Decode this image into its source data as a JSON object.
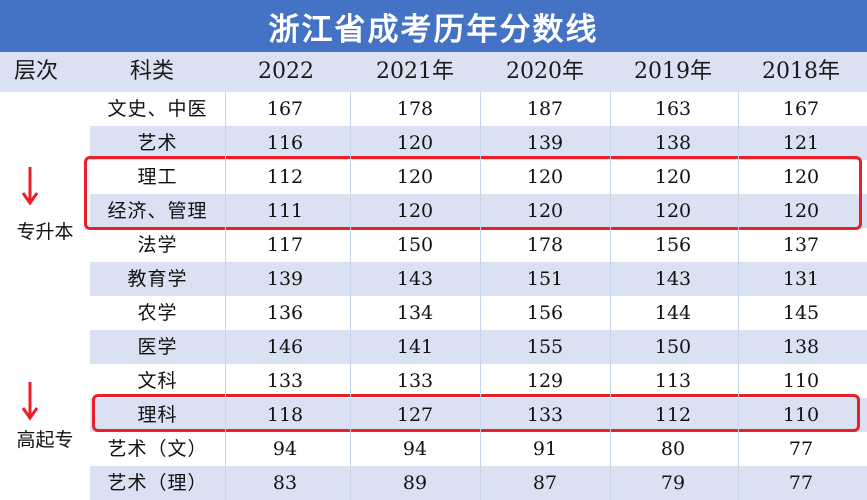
{
  "title": "浙江省成考历年分数线",
  "headers": [
    "层次",
    "科类",
    "2022",
    "2021年",
    "2020年",
    "2019年",
    "2018年"
  ],
  "groups": [
    {
      "level": "专升本"
    },
    {
      "level": "高起专"
    }
  ],
  "rows": [
    {
      "subject": "文史、中医",
      "scores": [
        "167",
        "178",
        "187",
        "163",
        "167"
      ]
    },
    {
      "subject": "艺术",
      "scores": [
        "116",
        "120",
        "139",
        "138",
        "121"
      ]
    },
    {
      "subject": "理工",
      "scores": [
        "112",
        "120",
        "120",
        "120",
        "120"
      ]
    },
    {
      "subject": "经济、管理",
      "scores": [
        "111",
        "120",
        "120",
        "120",
        "120"
      ]
    },
    {
      "subject": "法学",
      "scores": [
        "117",
        "150",
        "178",
        "156",
        "137"
      ]
    },
    {
      "subject": "教育学",
      "scores": [
        "139",
        "143",
        "151",
        "143",
        "131"
      ]
    },
    {
      "subject": "农学",
      "scores": [
        "136",
        "134",
        "156",
        "144",
        "145"
      ]
    },
    {
      "subject": "医学",
      "scores": [
        "146",
        "141",
        "155",
        "150",
        "138"
      ]
    },
    {
      "subject": "文科",
      "scores": [
        "133",
        "133",
        "129",
        "113",
        "110"
      ]
    },
    {
      "subject": "理科",
      "scores": [
        "118",
        "127",
        "133",
        "112",
        "110"
      ]
    },
    {
      "subject": "艺术（文）",
      "scores": [
        "94",
        "94",
        "91",
        "80",
        "77"
      ]
    },
    {
      "subject": "艺术（理）",
      "scores": [
        "83",
        "89",
        "87",
        "79",
        "77"
      ]
    }
  ],
  "colors": {
    "header_bg": "#4472c4",
    "stripe": "#d9e1f2",
    "highlight": "#e8202a"
  }
}
